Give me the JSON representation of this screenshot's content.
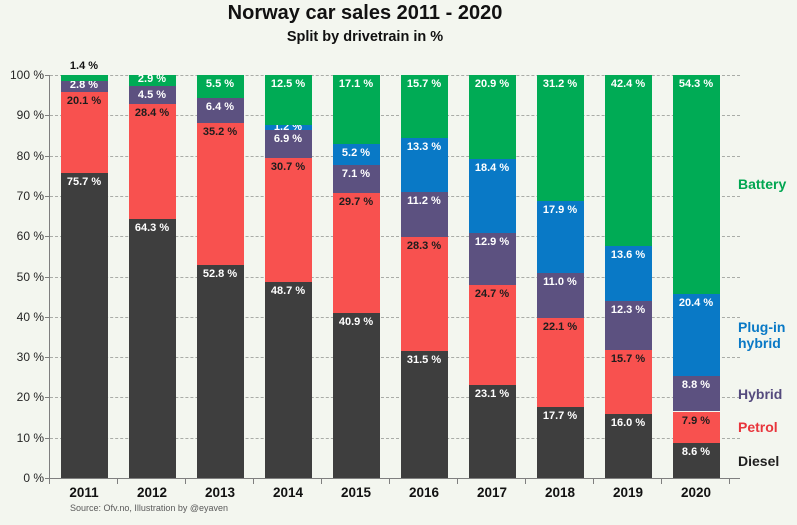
{
  "title": "Norway car sales 2011 - 2020",
  "subtitle": "Split by drivetrain in %",
  "source": "Source: Ofv.no, Illustration by @eyaven",
  "colors": {
    "background": "#F3F6EF",
    "axis": "#7f7f7f",
    "grid": "#a9aca7",
    "outside_label": "#111111"
  },
  "chart_data": {
    "type": "bar",
    "stacked": true,
    "title": "Norway car sales 2011 - 2020",
    "subtitle": "Split by drivetrain in %",
    "ylim": [
      0,
      100
    ],
    "grid": "horizontal-dashed",
    "legend_position": "right-aligned-to-last-bar",
    "yticks": [
      "0 %",
      "10 %",
      "20 %",
      "30 %",
      "40 %",
      "50 %",
      "60 %",
      "70 %",
      "80 %",
      "90 %",
      "100 %"
    ],
    "categories": [
      "2011",
      "2012",
      "2013",
      "2014",
      "2015",
      "2016",
      "2017",
      "2018",
      "2019",
      "2020"
    ],
    "series": [
      {
        "name": "Diesel",
        "color": "#3E3E3E",
        "label_color": "#FFFFFF",
        "legend_color": "#1f1f1f",
        "legend_lines": [
          "Diesel"
        ],
        "values": [
          75.7,
          64.3,
          52.8,
          48.7,
          40.9,
          31.5,
          23.1,
          17.7,
          16.0,
          8.6
        ]
      },
      {
        "name": "Petrol",
        "color": "#F8514F",
        "label_color": "#1d1d1d",
        "legend_color": "#E8353C",
        "legend_lines": [
          "Petrol"
        ],
        "values": [
          20.1,
          28.4,
          35.2,
          30.7,
          29.7,
          28.3,
          24.7,
          22.1,
          15.7,
          7.9
        ]
      },
      {
        "name": "Hybrid",
        "color": "#5C5180",
        "label_color": "#FFFFFF",
        "legend_color": "#544A7D",
        "legend_lines": [
          "Hybrid"
        ],
        "values": [
          2.8,
          4.5,
          6.4,
          6.9,
          7.1,
          11.2,
          12.9,
          11.0,
          12.3,
          8.8
        ]
      },
      {
        "name": "Plug-in hybrid",
        "color": "#0979C6",
        "label_color": "#FFFFFF",
        "legend_color": "#0979C6",
        "legend_lines": [
          "Plug-in",
          "hybrid"
        ],
        "values": [
          0,
          0,
          0,
          1.2,
          5.2,
          13.3,
          18.4,
          17.9,
          13.6,
          20.4
        ]
      },
      {
        "name": "Battery",
        "color": "#00AB55",
        "label_color": "#FFFFFF",
        "legend_color": "#00A651",
        "legend_lines": [
          "Battery"
        ],
        "values": [
          1.4,
          2.9,
          5.5,
          12.5,
          17.1,
          15.7,
          20.9,
          31.2,
          42.4,
          54.3
        ]
      }
    ],
    "label_format": "{value} %"
  }
}
